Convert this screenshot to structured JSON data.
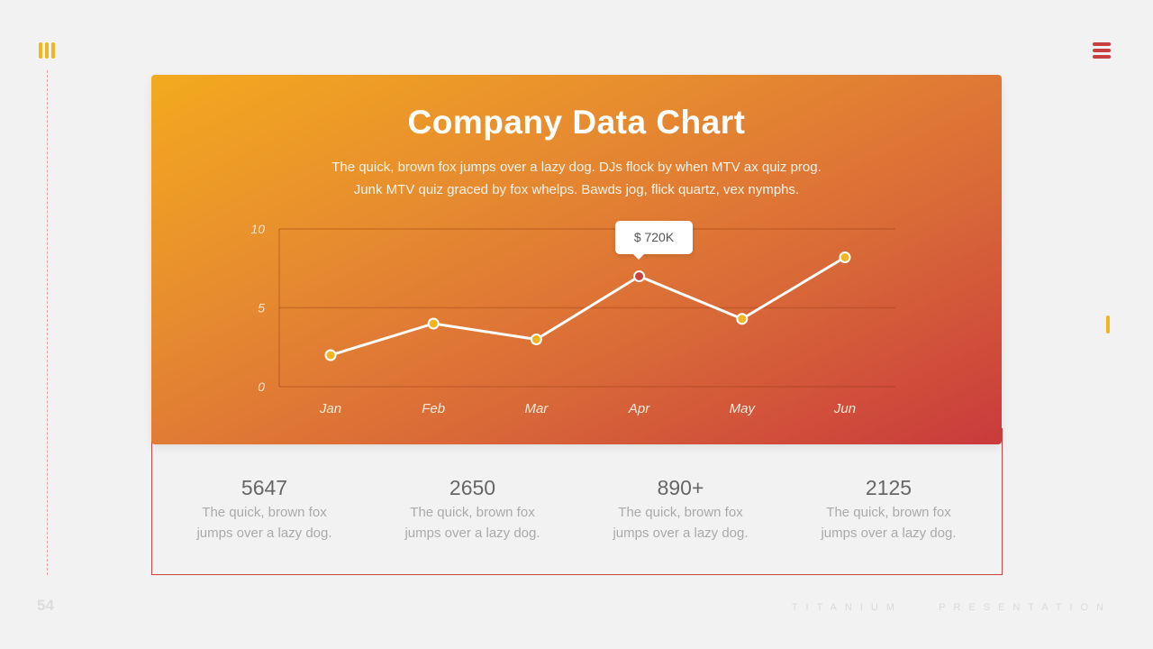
{
  "slide": {
    "title": "Company Data Chart",
    "subtitle_line1": "The quick, brown fox jumps over a lazy dog. DJs flock by when MTV ax quiz prog.",
    "subtitle_line2": "Junk MTV quiz graced by fox whelps. Bawds jog, flick quartz, vex nymphs.",
    "page_number": "54",
    "footer_left": "TITANIUM",
    "footer_right": "PRESENTATION",
    "tooltip": "$ 720K",
    "icons": [
      "bars-icon",
      "menu-icon"
    ]
  },
  "chart_data": {
    "type": "line",
    "categories": [
      "Jan",
      "Feb",
      "Mar",
      "Apr",
      "May",
      "Jun"
    ],
    "series": [
      {
        "values": [
          2,
          4,
          3,
          7,
          4.3,
          8.2
        ]
      }
    ],
    "highlight_index": 3,
    "ylim": [
      0,
      10
    ],
    "yticks": [
      0,
      5,
      10
    ],
    "grid": true,
    "colors": {
      "line": "#ffffff",
      "point": "#f2b522",
      "highlight": "#c8443e"
    }
  },
  "stats": [
    {
      "value": "5647",
      "desc_line1": "The quick, brown fox",
      "desc_line2": "jumps over a lazy dog."
    },
    {
      "value": "2650",
      "desc_line1": "The quick, brown fox",
      "desc_line2": "jumps over a lazy dog."
    },
    {
      "value": "890+",
      "desc_line1": "The quick, brown fox",
      "desc_line2": "jumps over a lazy dog."
    },
    {
      "value": "2125",
      "desc_line1": "The quick, brown fox",
      "desc_line2": "jumps over a lazy dog."
    }
  ]
}
